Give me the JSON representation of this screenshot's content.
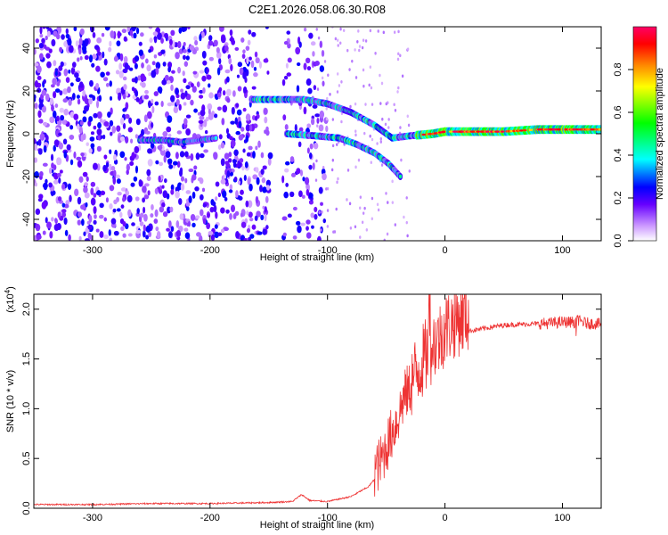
{
  "title": "C2E1.2026.058.06.30.R08",
  "chart_data": [
    {
      "type": "heatmap",
      "xlabel": "Height of straight line (km)",
      "ylabel": "Frequency (Hz)",
      "xlim": [
        -350,
        133
      ],
      "ylim": [
        -50,
        50
      ],
      "xticks": [
        -300,
        -200,
        -100,
        0,
        100
      ],
      "yticks": [
        -40,
        -20,
        0,
        20,
        40
      ],
      "colorbar": {
        "label": "Normalized spectral amplitude",
        "range": [
          0,
          1
        ],
        "ticks": [
          "0.0",
          "0.2",
          "0.4",
          "0.6",
          "0.8"
        ],
        "colors": [
          "#ffffff",
          "#cc99ff",
          "#6600ff",
          "#0000ff",
          "#00ffff",
          "#00ff00",
          "#ffff00",
          "#ff8800",
          "#ff0000",
          "#ff0066"
        ]
      },
      "tracks": [
        {
          "x": [
            -165,
            -140,
            -120,
            -100,
            -80,
            -60,
            -45,
            -30,
            -10,
            0,
            20,
            50,
            80,
            110,
            133
          ],
          "y": [
            16,
            16,
            16,
            14,
            10,
            4,
            -2,
            -1,
            0,
            1,
            1,
            1,
            2,
            2,
            2
          ]
        },
        {
          "x": [
            -135,
            -110,
            -90,
            -75,
            -60,
            -48,
            -38
          ],
          "y": [
            0,
            -1,
            -2,
            -5,
            -9,
            -14,
            -20
          ]
        },
        {
          "x": [
            -260,
            -240,
            -225,
            -210,
            -195
          ],
          "y": [
            -3,
            -3,
            -4,
            -3,
            -2
          ]
        }
      ]
    },
    {
      "type": "line",
      "xlabel": "Height of straight line (km)",
      "ylabel": "SNR (10 * v/v)",
      "y_multiplier": "(x10^4)",
      "xlim": [
        -350,
        133
      ],
      "ylim": [
        0,
        2.15
      ],
      "xticks": [
        -300,
        -200,
        -100,
        0,
        100
      ],
      "yticks": [
        "0.0",
        "0.5",
        "1.0",
        "1.5",
        "2.0"
      ],
      "color": "#ee3333",
      "x": [
        -350,
        -300,
        -250,
        -200,
        -150,
        -130,
        -122,
        -115,
        -100,
        -80,
        -65,
        -55,
        -50,
        -45,
        -40,
        -35,
        -30,
        -25,
        -20,
        -15,
        -10,
        -5,
        0,
        5,
        10,
        15,
        20,
        30,
        40,
        50,
        70,
        90,
        100,
        110,
        115,
        120,
        133
      ],
      "y": [
        0.02,
        0.02,
        0.03,
        0.03,
        0.04,
        0.05,
        0.12,
        0.06,
        0.05,
        0.1,
        0.2,
        0.35,
        0.5,
        0.65,
        0.8,
        1.0,
        1.1,
        1.2,
        1.3,
        1.4,
        1.5,
        1.55,
        1.65,
        1.7,
        1.74,
        1.77,
        1.78,
        1.8,
        1.82,
        1.84,
        1.85,
        1.86,
        1.87,
        1.87,
        1.88,
        1.86,
        1.85
      ]
    }
  ]
}
